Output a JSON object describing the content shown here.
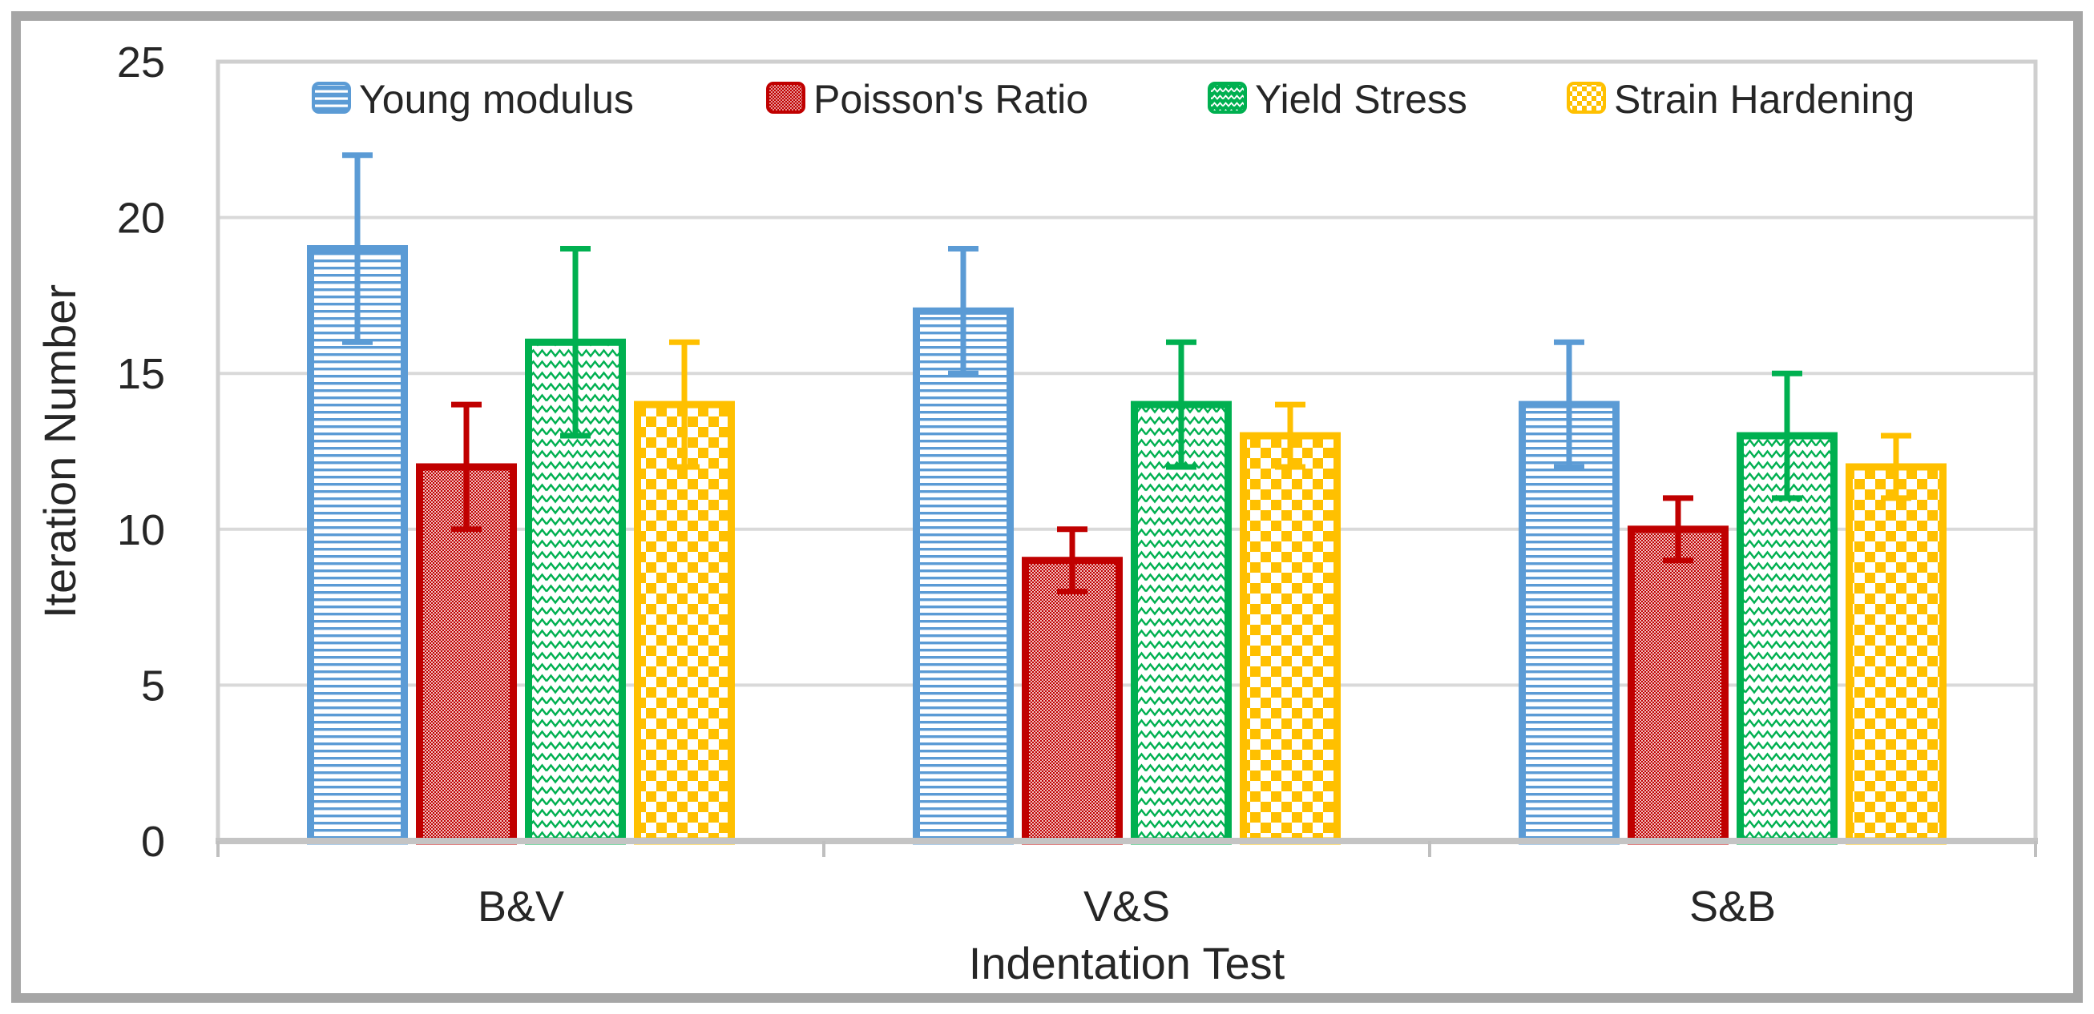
{
  "figure": {
    "background_color": "#ffffff",
    "frame_color": "#a6a6a6",
    "text_color": "#262626"
  },
  "chart_data": {
    "type": "bar",
    "categories": [
      "B&V",
      "V&S",
      "S&B"
    ],
    "series": [
      {
        "name": "Young modulus",
        "color": "#5B9BD5",
        "pattern": "horizontal-stripes",
        "values": [
          19,
          17,
          14
        ],
        "error_low": [
          16,
          15,
          12
        ],
        "error_high": [
          22,
          19,
          16
        ]
      },
      {
        "name": "Poisson's Ratio",
        "color": "#C00000",
        "pattern": "fine-dots",
        "values": [
          12,
          9,
          10
        ],
        "error_low": [
          10,
          8,
          9
        ],
        "error_high": [
          14,
          10,
          11
        ]
      },
      {
        "name": "Yield Stress",
        "color": "#00B050",
        "pattern": "zigzag",
        "values": [
          16,
          14,
          13
        ],
        "error_low": [
          13,
          12,
          11
        ],
        "error_high": [
          19,
          16,
          15
        ]
      },
      {
        "name": "Strain Hardening",
        "color": "#FFC000",
        "pattern": "checkerboard",
        "values": [
          14,
          13,
          12
        ],
        "error_low": [
          12,
          12,
          11
        ],
        "error_high": [
          16,
          14,
          13
        ]
      }
    ],
    "xlabel": "Indentation Test",
    "ylabel": "Iteration Number",
    "ylim": [
      0,
      25
    ],
    "yticks": [
      0,
      5,
      10,
      15,
      20,
      25
    ],
    "grid": true,
    "legend_position": "top",
    "gridline_color": "#D9D9D9",
    "plot_border_color": "#CFCFCF",
    "axis_line_color": "#C4C4C4",
    "tick_color": "#BFBFBF"
  }
}
